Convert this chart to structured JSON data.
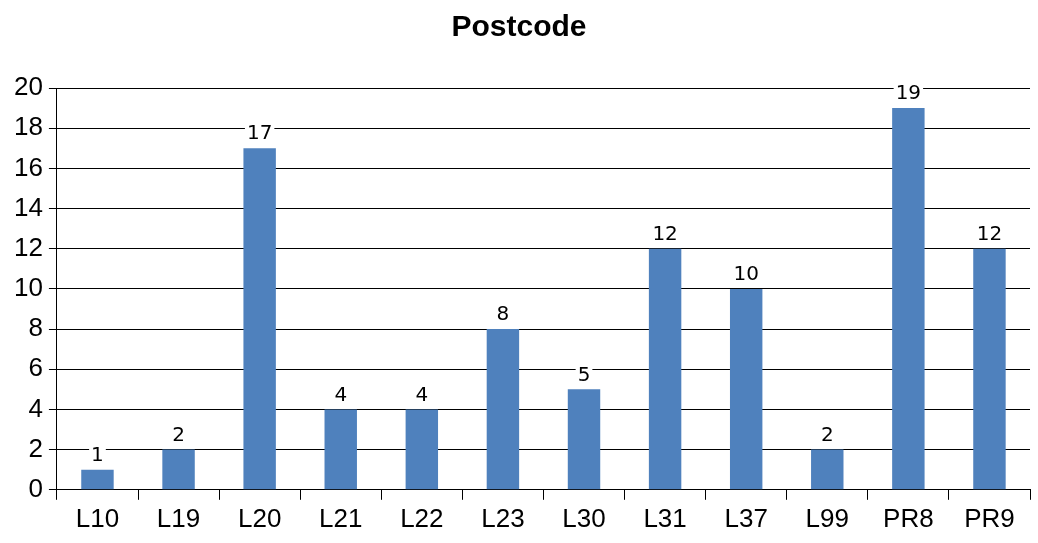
{
  "chart_data": {
    "type": "bar",
    "title": "Postcode",
    "categories": [
      "L10",
      "L19",
      "L20",
      "L21",
      "L22",
      "L23",
      "L30",
      "L31",
      "L37",
      "L99",
      "PR8",
      "PR9"
    ],
    "values": [
      1,
      2,
      17,
      4,
      4,
      8,
      5,
      12,
      10,
      2,
      19,
      12
    ],
    "color": "#4f81bd",
    "ylim": [
      0,
      20
    ],
    "yticks": [
      0,
      2,
      4,
      6,
      8,
      10,
      12,
      14,
      16,
      18,
      20
    ],
    "grid": "y",
    "data_labels": true,
    "legend": false
  }
}
